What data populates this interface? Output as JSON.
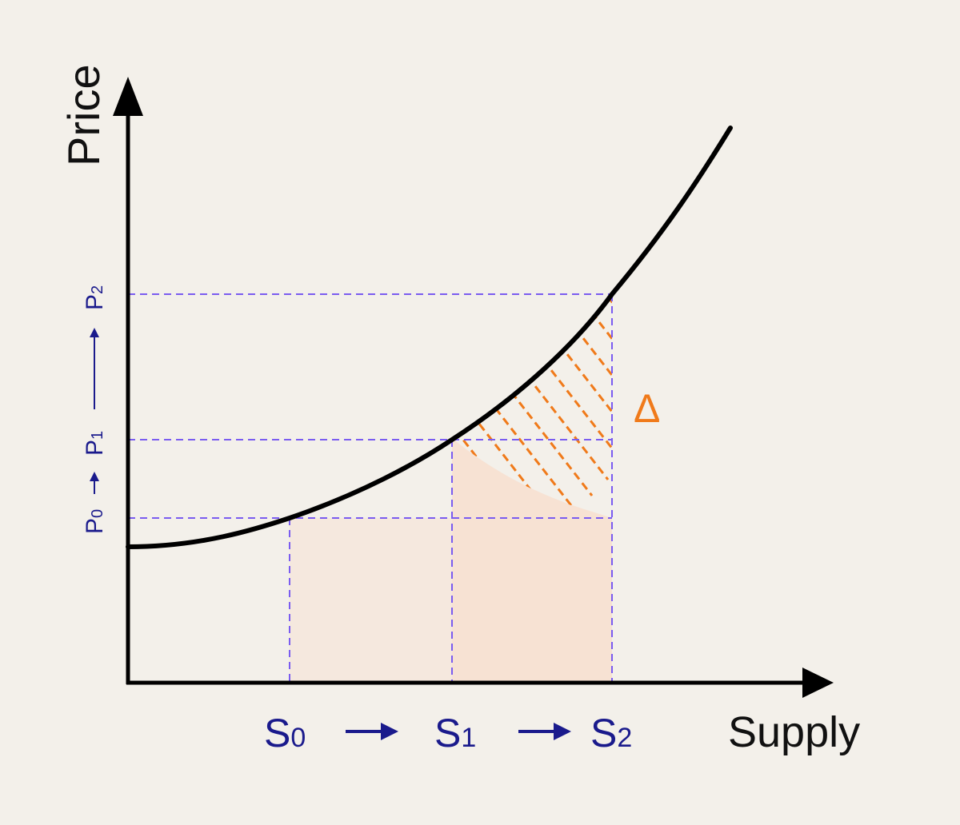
{
  "axes": {
    "x_label": "Supply",
    "y_label": "Price"
  },
  "supply_ticks": {
    "s0": {
      "base": "S",
      "sub": "0"
    },
    "s1": {
      "base": "S",
      "sub": "1"
    },
    "s2": {
      "base": "S",
      "sub": "2"
    }
  },
  "price_ticks": {
    "p0": {
      "base": "P",
      "sub": "0"
    },
    "p1": {
      "base": "P",
      "sub": "1"
    },
    "p2": {
      "base": "P",
      "sub": "2"
    }
  },
  "delta_label": "Δ",
  "colors": {
    "background": "#f3f0ea",
    "axis": "#000000",
    "curve": "#000000",
    "guide": "#7a5cf0",
    "tick_text": "#1a1a8c",
    "delta": "#f07a1a",
    "shade": "#f6e3d6"
  }
}
